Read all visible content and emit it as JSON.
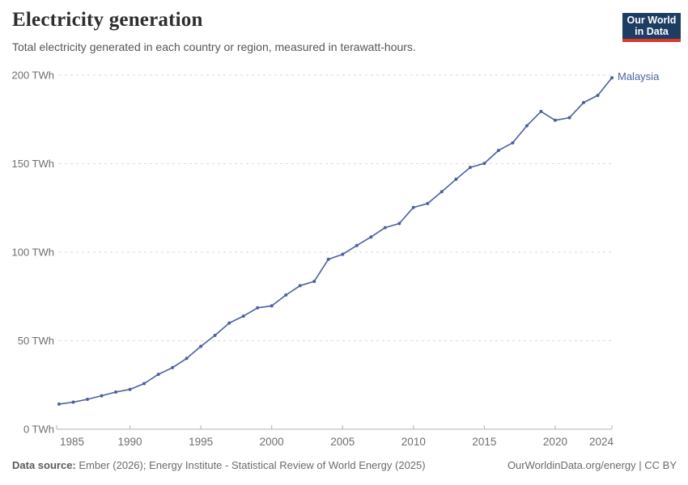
{
  "header": {
    "title": "Electricity generation",
    "subtitle": "Total electricity generated in each country or region, measured in terawatt-hours.",
    "logo": {
      "line1": "Our World",
      "line2": "in Data"
    }
  },
  "footer": {
    "source_label": "Data source:",
    "source_text": "Ember (2026); Energy Institute - Statistical Review of World Energy (2025)",
    "credit": "OurWorldinData.org/energy | CC BY"
  },
  "colors": {
    "series_line": "#4a60a0",
    "grid": "#dadada",
    "axis": "#b3b3b3",
    "tick_text": "#6e6e6e",
    "logo_bg": "#1d3d63",
    "logo_red": "#dc382c"
  },
  "chart_data": {
    "type": "line",
    "title": "Electricity generation",
    "subtitle": "Total electricity generated in each country or region, measured in terawatt-hours.",
    "unit": "TWh",
    "xlim": [
      1985,
      2024
    ],
    "ylim": [
      0,
      200
    ],
    "grid": "dashed-horizontal",
    "legend": "series-end-label",
    "years": [
      1985,
      1986,
      1987,
      1988,
      1989,
      1990,
      1991,
      1992,
      1993,
      1994,
      1995,
      1996,
      1997,
      1998,
      1999,
      2000,
      2001,
      2002,
      2003,
      2004,
      2005,
      2006,
      2007,
      2008,
      2009,
      2010,
      2011,
      2012,
      2013,
      2014,
      2015,
      2016,
      2017,
      2018,
      2019,
      2020,
      2021,
      2022,
      2023,
      2024
    ],
    "series": [
      {
        "name": "Malaysia",
        "color": "#4a60a0",
        "values": [
          14.2,
          15.3,
          16.9,
          18.9,
          21.0,
          22.5,
          25.8,
          31.0,
          34.8,
          40.0,
          46.8,
          53.0,
          60.0,
          63.9,
          68.6,
          69.7,
          75.8,
          81.1,
          83.5,
          96.0,
          98.8,
          103.8,
          108.6,
          113.9,
          116.2,
          125.3,
          127.5,
          134.2,
          141.2,
          147.9,
          150.2,
          157.5,
          161.8,
          171.4,
          179.5,
          174.5,
          176.0,
          184.5,
          188.6,
          198.5
        ]
      }
    ],
    "yticks": [
      {
        "value": 0,
        "label": "0 TWh"
      },
      {
        "value": 50,
        "label": "50 TWh"
      },
      {
        "value": 100,
        "label": "100 TWh"
      },
      {
        "value": 150,
        "label": "150 TWh"
      },
      {
        "value": 200,
        "label": "200 TWh"
      }
    ],
    "xticks": [
      {
        "value": 1985,
        "label": "1985"
      },
      {
        "value": 1990,
        "label": "1990"
      },
      {
        "value": 1995,
        "label": "1995"
      },
      {
        "value": 2000,
        "label": "2000"
      },
      {
        "value": 2005,
        "label": "2005"
      },
      {
        "value": 2010,
        "label": "2010"
      },
      {
        "value": 2015,
        "label": "2015"
      },
      {
        "value": 2020,
        "label": "2020"
      },
      {
        "value": 2024,
        "label": "2024"
      }
    ]
  }
}
